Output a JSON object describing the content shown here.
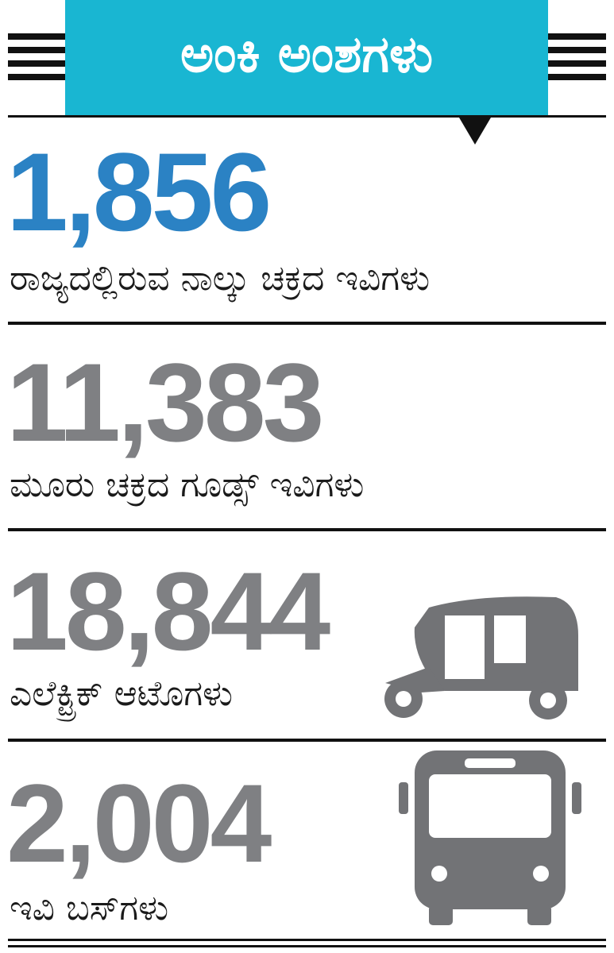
{
  "header": {
    "title": "ಅಂಕಿ ಅಂಶಗಳು"
  },
  "items": [
    {
      "number": "1,856",
      "label": "ರಾಜ್ಯದಲ್ಲಿರುವ ನಾಲ್ಕು ಚಕ್ರದ ಇವಿಗಳು"
    },
    {
      "number": "11,383",
      "label": "ಮೂರು ಚಕ್ರದ ಗೂಡ್ಸ್ ಇವಿಗಳು"
    },
    {
      "number": "18,844",
      "label": "ಎಲೆಕ್ಟ್ರಿಕ್ ಆಟೊಗಳು"
    },
    {
      "number": "2,004",
      "label": "ಇವಿ ಬಸ್‌ಗಳು"
    }
  ]
}
